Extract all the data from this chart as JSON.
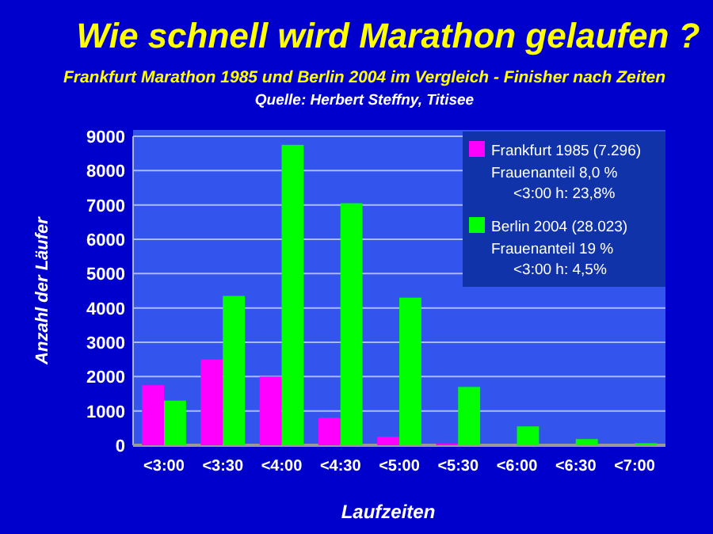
{
  "chart_data": {
    "type": "bar",
    "title": "Wie schnell wird Marathon gelaufen ?",
    "subtitle": "Frankfurt Marathon 1985 und Berlin 2004 im Vergleich - Finisher nach Zeiten",
    "xlabel": "Laufzeiten",
    "ylabel": "Anzahl der Läufer",
    "categories": [
      "<3:00",
      "<3:30",
      "<4:00",
      "<4:30",
      "<5:00",
      "<5:30",
      "<6:00",
      "<6:30",
      "<7:00"
    ],
    "series": [
      {
        "name": "Frankfurt 1985 (7.296)",
        "color": "#ff00ff",
        "values": [
          1750,
          2500,
          2000,
          800,
          250,
          50,
          0,
          0,
          0
        ]
      },
      {
        "name": "Berlin 2004 (28.023)",
        "color": "#00ff00",
        "values": [
          1300,
          4350,
          8750,
          7050,
          4300,
          1700,
          550,
          180,
          60
        ]
      }
    ],
    "ylim": [
      0,
      9000
    ],
    "yticks": [
      0,
      1000,
      2000,
      3000,
      4000,
      5000,
      6000,
      7000,
      8000,
      9000
    ],
    "grid": "y",
    "legend": "top right",
    "annotations": [
      "Quelle: Herbert Steffny, Titisee",
      "Frauenanteil 8,0 %",
      "<3:00 h: 23,8%",
      "Frauenanteil 19 %",
      "<3:00 h:  4,5%"
    ]
  }
}
